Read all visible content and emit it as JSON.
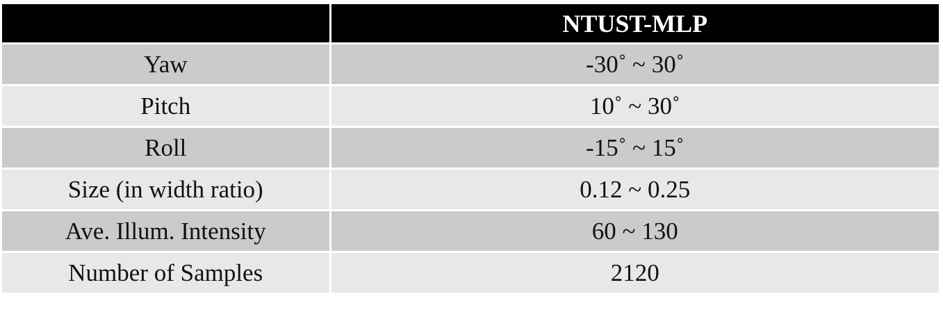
{
  "table": {
    "header": [
      "",
      "NTUST-MLP"
    ],
    "rows": [
      {
        "label": "Yaw",
        "value": "-30˚ ~ 30˚"
      },
      {
        "label": "Pitch",
        "value": "10˚  ~ 30˚"
      },
      {
        "label": "Roll",
        "value": "-15˚  ~ 15˚"
      },
      {
        "label": "Size (in width ratio)",
        "value": "0.12 ~ 0.25"
      },
      {
        "label": "Ave. Illum. Intensity",
        "value": "60 ~ 130"
      },
      {
        "label": "Number of Samples",
        "value": "2120"
      }
    ]
  },
  "colors": {
    "header_bg": "#000000",
    "header_text": "#ffffff",
    "row_dark": "#cbcbcb",
    "row_light": "#e8e8e8"
  }
}
